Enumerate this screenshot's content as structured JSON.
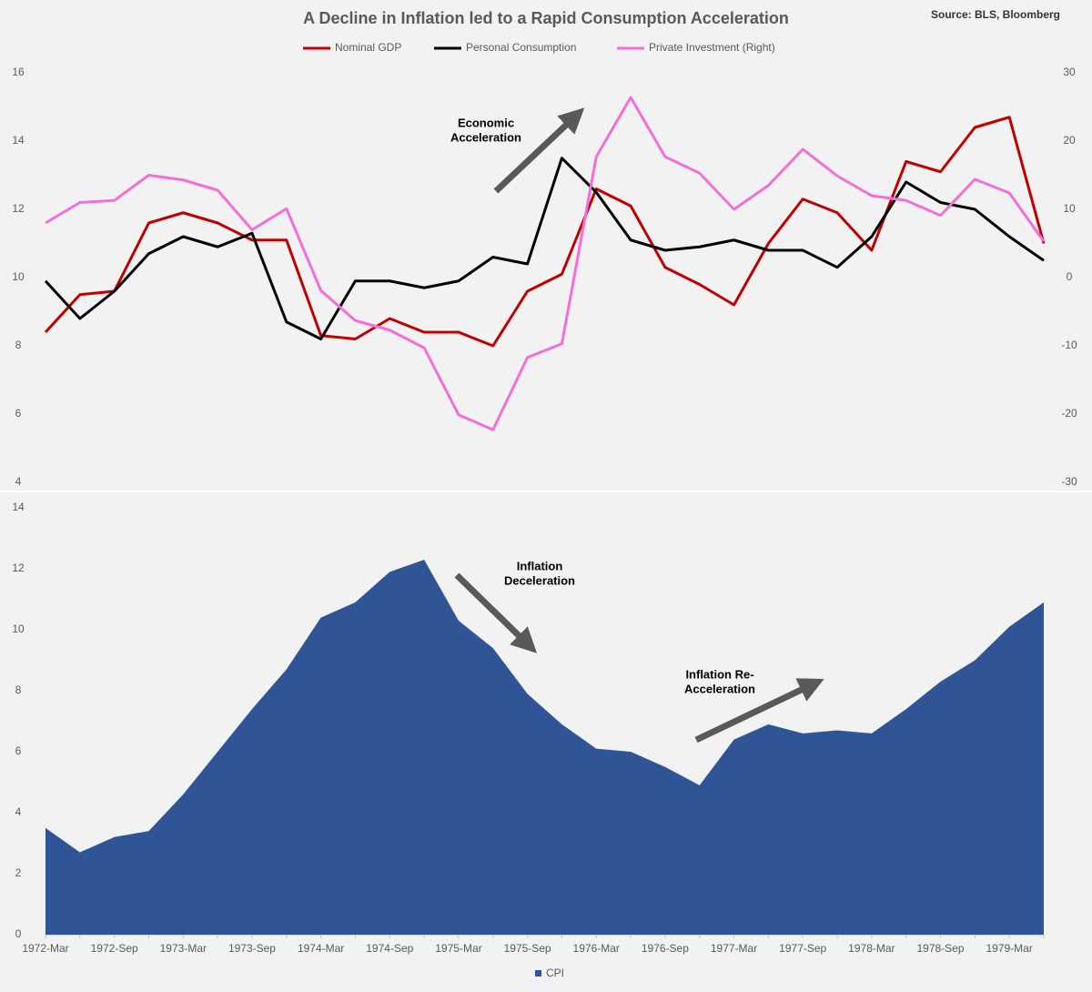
{
  "source": "Source: BLS, Bloomberg",
  "chart_data": [
    {
      "type": "line",
      "title": "A Decline in Inflation led to a Rapid Consumption Acceleration",
      "series": [
        {
          "name": "Nominal GDP",
          "color": "#c00000",
          "values": [
            8.4,
            9.5,
            9.6,
            11.6,
            11.9,
            11.6,
            11.1,
            11.1,
            8.3,
            8.2,
            8.8,
            8.4,
            8.4,
            8.0,
            9.6,
            10.1,
            12.6,
            12.1,
            10.3,
            9.8,
            9.2,
            11.0,
            12.3,
            11.9,
            10.8,
            13.4,
            13.1,
            14.4,
            14.7,
            11.0
          ]
        },
        {
          "name": "Personal Consumption",
          "color": "#000000",
          "values": [
            9.9,
            8.8,
            9.6,
            10.7,
            11.2,
            10.9,
            11.3,
            8.7,
            8.2,
            9.9,
            9.9,
            9.7,
            9.9,
            10.6,
            10.4,
            13.5,
            12.5,
            11.1,
            10.8,
            10.9,
            11.1,
            10.8,
            10.8,
            10.3,
            11.2,
            12.8,
            12.2,
            12.0,
            11.2,
            10.5
          ]
        },
        {
          "name": "Private Investment (Right)",
          "color": "#f36fd7",
          "axis": "y2",
          "values": [
            8,
            11,
            11.3,
            15,
            14.3,
            12.8,
            7,
            10.1,
            -1.9,
            -6.3,
            -7.7,
            -10.3,
            -20.1,
            -22.3,
            -11.7,
            -9.7,
            17.7,
            26.4,
            17.7,
            15.3,
            10,
            13.5,
            18.8,
            14.9,
            12,
            11.3,
            9.1,
            14.4,
            12.4,
            5.3
          ]
        }
      ],
      "ylim": [
        4,
        16
      ],
      "yticks": [
        4,
        6,
        8,
        10,
        12,
        14,
        16
      ],
      "y2lim": [
        -30,
        30
      ],
      "y2ticks": [
        -30,
        -20,
        -10,
        0,
        10,
        20,
        30
      ],
      "legend": "top",
      "annotations": [
        {
          "text": [
            "Economic",
            "Acceleration"
          ]
        }
      ]
    },
    {
      "type": "area",
      "categories": [
        "1972-Mar",
        null,
        "1972-Sep",
        null,
        "1973-Mar",
        null,
        "1973-Sep",
        null,
        "1974-Mar",
        null,
        "1974-Sep",
        null,
        "1975-Mar",
        null,
        "1975-Sep",
        null,
        "1976-Mar",
        null,
        "1976-Sep",
        null,
        "1977-Mar",
        null,
        "1977-Sep",
        null,
        "1978-Mar",
        null,
        "1978-Sep",
        null,
        "1979-Mar",
        null
      ],
      "series": [
        {
          "name": "CPI",
          "color": "#2f5597",
          "values": [
            3.5,
            2.7,
            3.2,
            3.4,
            4.6,
            6.0,
            7.4,
            8.7,
            10.4,
            10.9,
            11.9,
            12.3,
            10.3,
            9.4,
            7.9,
            6.9,
            6.1,
            6.0,
            5.5,
            4.9,
            6.4,
            6.9,
            6.6,
            6.7,
            6.6,
            7.4,
            8.3,
            9.0,
            10.1,
            10.9
          ]
        }
      ],
      "ylim": [
        0,
        14
      ],
      "yticks": [
        0,
        2,
        4,
        6,
        8,
        10,
        12,
        14
      ],
      "legend": "bottom",
      "annotations": [
        {
          "text": [
            "Inflation",
            "Deceleration"
          ]
        },
        {
          "text": [
            "Inflation Re-",
            "Acceleration"
          ]
        }
      ]
    }
  ]
}
